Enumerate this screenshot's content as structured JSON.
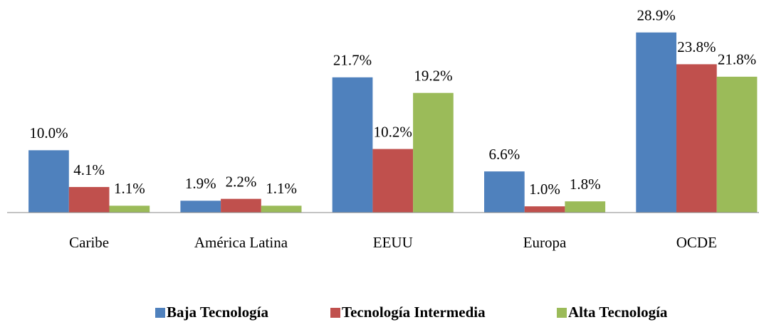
{
  "chart_data": {
    "type": "bar",
    "categories": [
      "Caribe",
      "América Latina",
      "EEUU",
      "Europa",
      "OCDE"
    ],
    "series": [
      {
        "name": "Baja Tecnología",
        "color": "#4f81bd",
        "values": [
          10.0,
          1.9,
          21.7,
          6.6,
          28.9
        ],
        "value_labels": [
          "10.0%",
          "1.9%",
          "21.7%",
          "6.6%",
          "28.9%"
        ]
      },
      {
        "name": "Tecnología Intermedia",
        "color": "#c0504d",
        "values": [
          4.1,
          2.2,
          10.2,
          1.0,
          23.8
        ],
        "value_labels": [
          "4.1%",
          "2.2%",
          "10.2%",
          "1.0%",
          "23.8%"
        ]
      },
      {
        "name": "Alta Tecnología",
        "color": "#9bbb59",
        "values": [
          1.1,
          1.1,
          19.2,
          1.8,
          21.8
        ],
        "value_labels": [
          "1.1%",
          "1.1%",
          "19.2%",
          "1.8%",
          "21.8%"
        ]
      }
    ],
    "ylim": [
      0,
      30
    ],
    "grid": false,
    "legend": "bottom"
  }
}
